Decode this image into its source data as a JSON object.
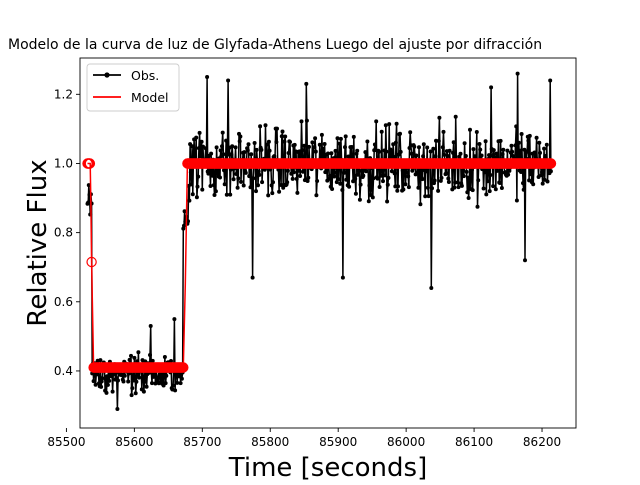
{
  "chart_data": {
    "type": "line",
    "title": "Modelo de la curva de luz de Glyfada-Athens Luego del ajuste por difracción",
    "xlabel": "Time [seconds]",
    "ylabel": "Relative Flux",
    "xlim": [
      85520,
      86250
    ],
    "ylim": [
      0.235,
      1.305
    ],
    "x_ticks": [
      85500,
      85600,
      85700,
      85800,
      85900,
      86000,
      86100,
      86200
    ],
    "x_tick_labels": [
      "85500",
      "85600",
      "85700",
      "85800",
      "85900",
      "86000",
      "86100",
      "86200"
    ],
    "y_ticks": [
      0.4,
      0.6,
      0.8,
      1.0,
      1.2
    ],
    "y_tick_labels": [
      "0.4",
      "0.6",
      "0.8",
      "1.0",
      "1.2"
    ],
    "grid": false,
    "legend": {
      "placement": "top-left",
      "entries": [
        {
          "label": "Obs.",
          "color": "#000000",
          "marker": "dot"
        },
        {
          "label": "Model",
          "color": "#ff0000",
          "marker": "line"
        }
      ]
    },
    "series": [
      {
        "name": "Obs.",
        "color": "#000000",
        "x_range": [
          85531,
          86214
        ],
        "segments": [
          {
            "x": [
              85531,
              85538
            ],
            "level": 0.9,
            "noise": 0.05
          },
          {
            "x": [
              85538,
              85543
            ],
            "level": 0.41,
            "noise": 0.05
          },
          {
            "x": [
              85543,
              85672
            ],
            "level": 0.39,
            "noise": 0.05
          },
          {
            "x": [
              85672,
              85680
            ],
            "level": 0.85,
            "noise": 0.06
          },
          {
            "x": [
              85680,
              86214
            ],
            "level": 1.0,
            "noise": 0.09
          }
        ],
        "highlights": [
          {
            "x": 85575,
            "y": 0.29
          },
          {
            "x": 85624,
            "y": 0.53
          },
          {
            "x": 85659,
            "y": 0.55
          },
          {
            "x": 85707,
            "y": 1.25
          },
          {
            "x": 85738,
            "y": 1.24
          },
          {
            "x": 85774,
            "y": 0.67
          },
          {
            "x": 85853,
            "y": 1.23
          },
          {
            "x": 85907,
            "y": 0.67
          },
          {
            "x": 86037,
            "y": 0.64
          },
          {
            "x": 86125,
            "y": 1.22
          },
          {
            "x": 86164,
            "y": 1.26
          },
          {
            "x": 86175,
            "y": 0.72
          },
          {
            "x": 86212,
            "y": 1.24
          }
        ]
      },
      {
        "name": "Model",
        "color": "#ff0000",
        "x": [
          85531,
          85535,
          85536,
          85537,
          85540,
          85672,
          85675,
          85678,
          86214
        ],
        "y": [
          1.0,
          1.0,
          0.88,
          0.715,
          0.41,
          0.41,
          0.65,
          1.0,
          1.0
        ],
        "open_markers": [
          {
            "x": 85537,
            "y": 0.715
          }
        ]
      }
    ]
  }
}
